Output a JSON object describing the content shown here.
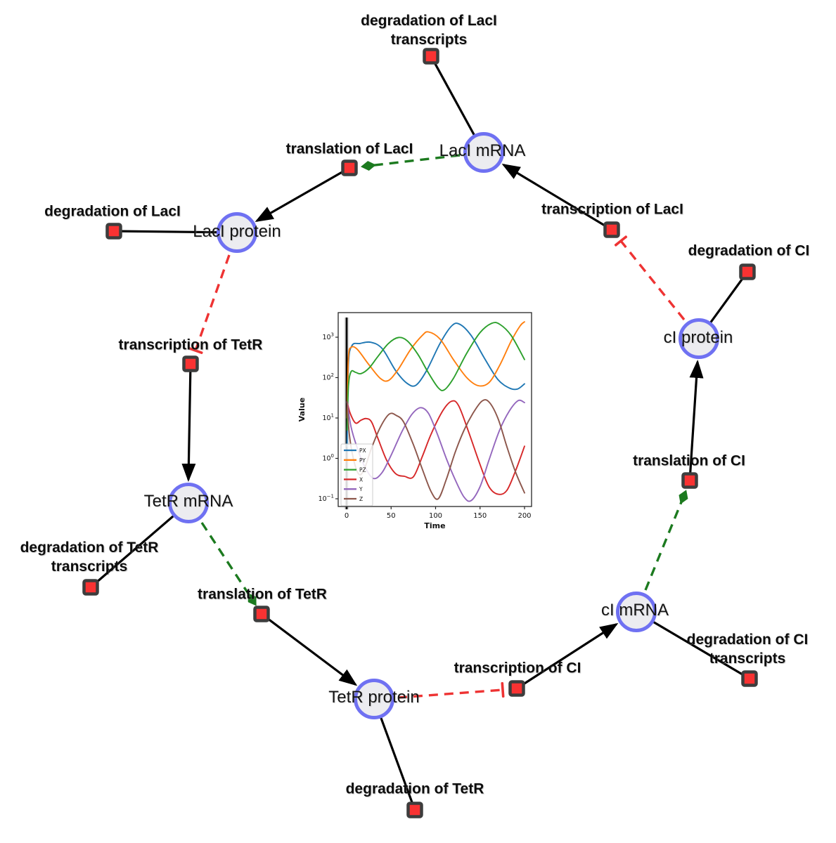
{
  "nodes": {
    "laci_mrna": {
      "label": "LacI mRNA"
    },
    "laci_protein": {
      "label": "LacI protein"
    },
    "tetr_mrna": {
      "label": "TetR mRNA"
    },
    "tetr_protein": {
      "label": "TetR protein"
    },
    "ci_mrna": {
      "label": "cI mRNA"
    },
    "ci_protein": {
      "label": "cI protein"
    }
  },
  "reactions": {
    "deg_laci_transcripts": {
      "label": "degradation of LacI transcripts"
    },
    "translation_laci": {
      "label": "translation of LacI"
    },
    "transcription_laci": {
      "label": "transcription of LacI"
    },
    "deg_laci": {
      "label": "degradation of LacI"
    },
    "transcription_tetr": {
      "label": "transcription of TetR"
    },
    "deg_tetr_transcripts": {
      "label": "degradation of TetR transcripts"
    },
    "translation_tetr": {
      "label": "translation of TetR"
    },
    "deg_tetr": {
      "label": "degradation of TetR"
    },
    "transcription_ci": {
      "label": "transcription of CI"
    },
    "deg_ci_transcripts": {
      "label": "degradation of CI transcripts"
    },
    "translation_ci": {
      "label": "translation of CI"
    },
    "deg_ci": {
      "label": "degradation of CI"
    }
  },
  "colors": {
    "species_fill": "#ececf0",
    "species_border": "#6f71f2",
    "reaction_fill": "#f93232",
    "reaction_border": "#3d3d3d",
    "edge_black": "#000000",
    "edge_activation_green": "#1c7a1f",
    "edge_inhibition_red": "#ee3333"
  },
  "chart_data": {
    "type": "line",
    "title": "",
    "xlabel": "Time",
    "ylabel": "Value",
    "x_range": [
      0,
      200
    ],
    "y_scale": "log",
    "xticks": [
      0,
      50,
      100,
      150,
      200
    ],
    "ytick_exponents": [
      3,
      2,
      1,
      0,
      -1
    ],
    "grid": false,
    "legend_position": "lower left",
    "annotations": [
      {
        "type": "vline",
        "x": 0,
        "color": "#000000"
      }
    ],
    "series": [
      {
        "name": "PX",
        "color": "#1f77b4",
        "points": [
          [
            0.5,
            2
          ],
          [
            2,
            200
          ],
          [
            6,
            620
          ],
          [
            15,
            700
          ],
          [
            27,
            750
          ],
          [
            40,
            520
          ],
          [
            55,
            150
          ],
          [
            68,
            72
          ],
          [
            78,
            65
          ],
          [
            90,
            150
          ],
          [
            105,
            700
          ],
          [
            118,
            1900
          ],
          [
            127,
            2100
          ],
          [
            140,
            1100
          ],
          [
            155,
            300
          ],
          [
            170,
            90
          ],
          [
            183,
            55
          ],
          [
            192,
            52
          ],
          [
            200,
            70
          ]
        ]
      },
      {
        "name": "PY",
        "color": "#ff7f0e",
        "points": [
          [
            0.5,
            10
          ],
          [
            2,
            300
          ],
          [
            5,
            560
          ],
          [
            12,
            500
          ],
          [
            25,
            210
          ],
          [
            38,
            95
          ],
          [
            47,
            85
          ],
          [
            58,
            160
          ],
          [
            72,
            500
          ],
          [
            85,
            1100
          ],
          [
            92,
            1350
          ],
          [
            105,
            900
          ],
          [
            120,
            280
          ],
          [
            135,
            100
          ],
          [
            148,
            63
          ],
          [
            160,
            75
          ],
          [
            172,
            200
          ],
          [
            185,
            800
          ],
          [
            195,
            1900
          ],
          [
            200,
            2400
          ]
        ]
      },
      {
        "name": "PZ",
        "color": "#2ca02c",
        "points": [
          [
            0.5,
            5
          ],
          [
            2,
            60
          ],
          [
            5,
            140
          ],
          [
            10,
            135
          ],
          [
            16,
            125
          ],
          [
            25,
            170
          ],
          [
            35,
            330
          ],
          [
            47,
            700
          ],
          [
            58,
            980
          ],
          [
            68,
            820
          ],
          [
            80,
            380
          ],
          [
            92,
            130
          ],
          [
            103,
            56
          ],
          [
            110,
            50
          ],
          [
            120,
            95
          ],
          [
            135,
            400
          ],
          [
            150,
            1300
          ],
          [
            163,
            2200
          ],
          [
            172,
            2100
          ],
          [
            185,
            1100
          ],
          [
            200,
            280
          ]
        ]
      },
      {
        "name": "X",
        "color": "#d62728",
        "points": [
          [
            0.5,
            25
          ],
          [
            4,
            13
          ],
          [
            10,
            7.5
          ],
          [
            16,
            8.8
          ],
          [
            22,
            9.7
          ],
          [
            28,
            8
          ],
          [
            35,
            3.2
          ],
          [
            45,
            0.9
          ],
          [
            55,
            0.42
          ],
          [
            65,
            0.36
          ],
          [
            75,
            0.35
          ],
          [
            85,
            1.1
          ],
          [
            95,
            4
          ],
          [
            108,
            15
          ],
          [
            118,
            26
          ],
          [
            126,
            20
          ],
          [
            138,
            4
          ],
          [
            150,
            0.7
          ],
          [
            160,
            0.2
          ],
          [
            170,
            0.13
          ],
          [
            180,
            0.16
          ],
          [
            190,
            0.5
          ],
          [
            200,
            2
          ]
        ]
      },
      {
        "name": "Y",
        "color": "#9467bd",
        "points": [
          [
            0.5,
            25
          ],
          [
            5,
            6
          ],
          [
            12,
            1.8
          ],
          [
            20,
            0.65
          ],
          [
            30,
            0.32
          ],
          [
            40,
            0.45
          ],
          [
            50,
            1.2
          ],
          [
            62,
            4.5
          ],
          [
            73,
            12
          ],
          [
            83,
            18
          ],
          [
            92,
            13
          ],
          [
            102,
            4
          ],
          [
            112,
            1
          ],
          [
            122,
            0.3
          ],
          [
            132,
            0.11
          ],
          [
            140,
            0.09
          ],
          [
            150,
            0.2
          ],
          [
            160,
            0.9
          ],
          [
            172,
            5
          ],
          [
            183,
            15
          ],
          [
            193,
            27
          ],
          [
            200,
            24
          ]
        ]
      },
      {
        "name": "Z",
        "color": "#8c564b",
        "points": [
          [
            0.5,
            25
          ],
          [
            3,
            4
          ],
          [
            8,
            0.9
          ],
          [
            14,
            0.4
          ],
          [
            20,
            0.55
          ],
          [
            28,
            1.8
          ],
          [
            38,
            6
          ],
          [
            48,
            12.5
          ],
          [
            56,
            11.5
          ],
          [
            64,
            8
          ],
          [
            75,
            2.2
          ],
          [
            85,
            0.55
          ],
          [
            95,
            0.15
          ],
          [
            103,
            0.1
          ],
          [
            112,
            0.3
          ],
          [
            122,
            1.4
          ],
          [
            132,
            5
          ],
          [
            142,
            13
          ],
          [
            152,
            26
          ],
          [
            160,
            25
          ],
          [
            170,
            10
          ],
          [
            180,
            2
          ],
          [
            190,
            0.45
          ],
          [
            200,
            0.14
          ]
        ]
      }
    ]
  }
}
